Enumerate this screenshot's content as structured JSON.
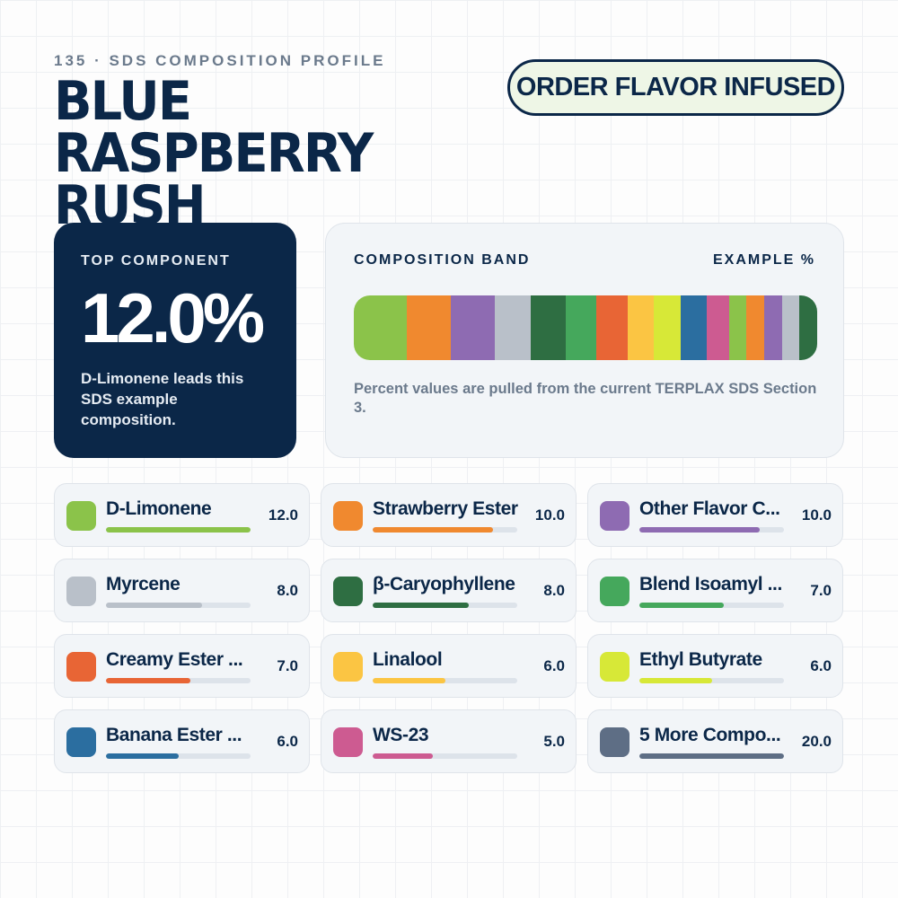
{
  "header": {
    "eyebrow": "135 · SDS COMPOSITION PROFILE",
    "title": "BLUE RASPBERRY RUSH",
    "order_button": "ORDER FLAVOR INFUSED"
  },
  "top_component": {
    "label": "TOP COMPONENT",
    "value": "12.0%",
    "description": "D-Limonene leads this SDS example composition."
  },
  "band": {
    "title": "COMPOSITION BAND",
    "unit": "EXAMPLE %",
    "note": "Percent values are pulled from the current TERPLAX SDS Section 3.",
    "segments": [
      {
        "color": "#8bc34a",
        "value": 12.0
      },
      {
        "color": "#f0892f",
        "value": 10.0
      },
      {
        "color": "#8e6bb2",
        "value": 10.0
      },
      {
        "color": "#b9c0c9",
        "value": 8.0
      },
      {
        "color": "#2e6e42",
        "value": 8.0
      },
      {
        "color": "#45a85c",
        "value": 7.0
      },
      {
        "color": "#e86535",
        "value": 7.0
      },
      {
        "color": "#fbc543",
        "value": 6.0
      },
      {
        "color": "#d7e837",
        "value": 6.0
      },
      {
        "color": "#2b6ea0",
        "value": 6.0
      },
      {
        "color": "#cd5b91",
        "value": 5.0
      },
      {
        "color": "#8bc34a",
        "value": 4.0
      },
      {
        "color": "#f0892f",
        "value": 4.0
      },
      {
        "color": "#8e6bb2",
        "value": 4.0
      },
      {
        "color": "#b9c0c9",
        "value": 4.0
      },
      {
        "color": "#2e6e42",
        "value": 4.0
      }
    ]
  },
  "chart_data": {
    "type": "bar",
    "title": "COMPOSITION BAND",
    "categories": [
      "D-Limonene",
      "Strawberry Ester",
      "Other Flavor C...",
      "Myrcene",
      "β-Caryophyllene",
      "Blend Isoamyl ...",
      "Creamy Ester ...",
      "Linalool",
      "Ethyl Butyrate",
      "Banana Ester ...",
      "WS-23",
      "5 More Compo..."
    ],
    "values": [
      12.0,
      10.0,
      10.0,
      8.0,
      8.0,
      7.0,
      7.0,
      6.0,
      6.0,
      6.0,
      5.0,
      20.0
    ],
    "value_labels": [
      "12.0",
      "10.0",
      "10.0",
      "8.0",
      "8.0",
      "7.0",
      "7.0",
      "6.0",
      "6.0",
      "6.0",
      "5.0",
      "20.0"
    ],
    "colors": [
      "#8bc34a",
      "#f0892f",
      "#8e6bb2",
      "#b9c0c9",
      "#2e6e42",
      "#45a85c",
      "#e86535",
      "#fbc543",
      "#d7e837",
      "#2b6ea0",
      "#cd5b91",
      "#5e6e85"
    ],
    "bar_scale_max": 12.0
  }
}
